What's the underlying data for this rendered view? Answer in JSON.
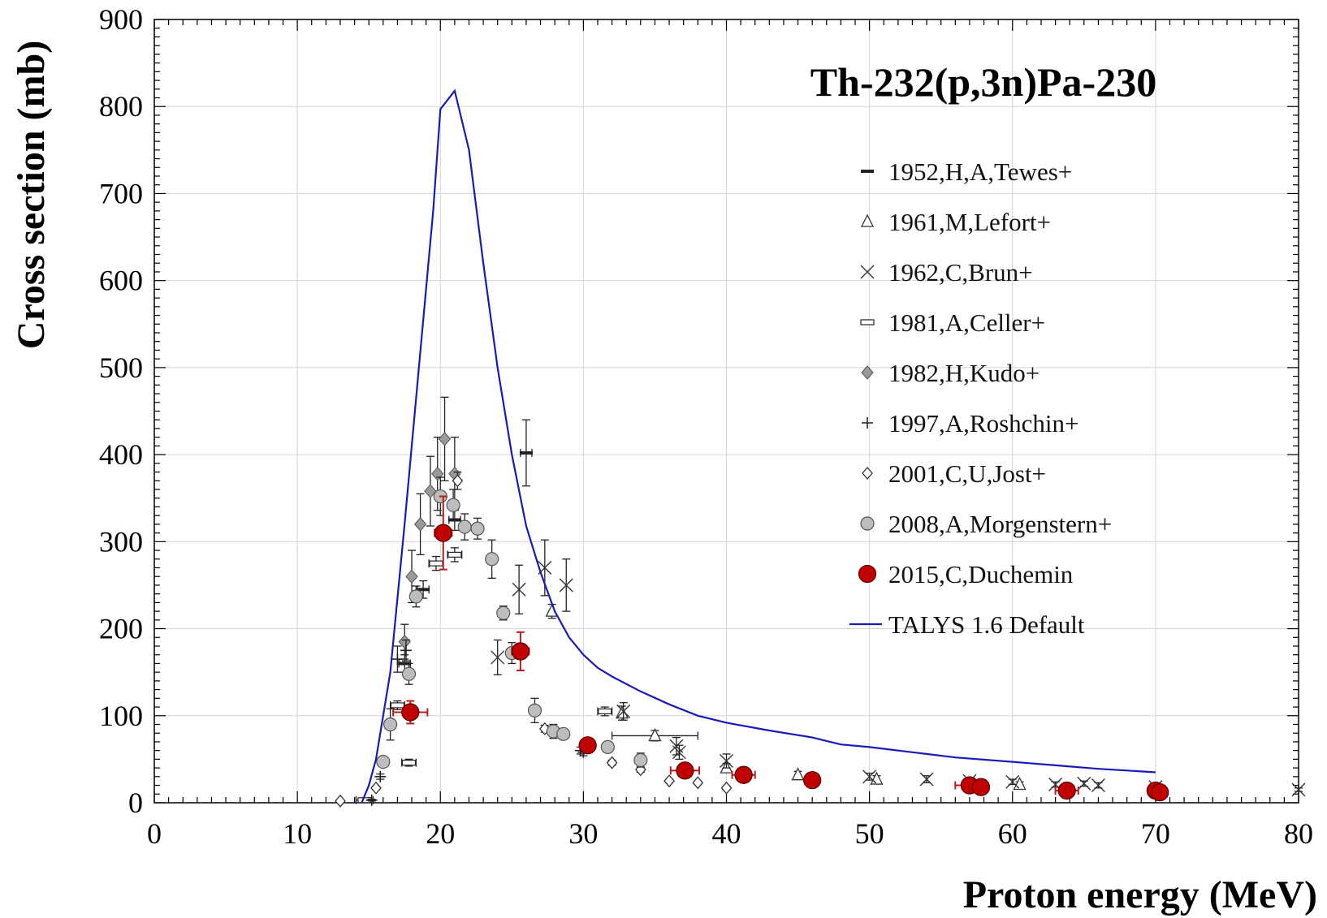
{
  "chart_data": {
    "type": "scatter",
    "title": "Th-232(p,3n)Pa-230",
    "xlabel": "Proton energy (MeV)",
    "ylabel": "Cross section (mb)",
    "xlim": [
      0,
      80
    ],
    "ylim": [
      0,
      900
    ],
    "xticks": [
      0,
      10,
      20,
      30,
      40,
      50,
      60,
      70,
      80
    ],
    "yticks": [
      0,
      100,
      200,
      300,
      400,
      500,
      600,
      700,
      800,
      900
    ],
    "grid": true,
    "legend_position": "right",
    "series": [
      {
        "name": "1952,H,A,Tewes+",
        "marker": "dash",
        "color": "#000000",
        "points": [
          {
            "x": 17.5,
            "y": 160,
            "ey": 10,
            "ex": 0.4
          },
          {
            "x": 18.8,
            "y": 245,
            "ey": 10,
            "ex": 0.4
          },
          {
            "x": 21.0,
            "y": 325,
            "ey": 12,
            "ex": 0.4
          },
          {
            "x": 26.0,
            "y": 402,
            "ey": 38,
            "ex": 0.4
          }
        ]
      },
      {
        "name": "1961,M,Lefort+",
        "marker": "triangle",
        "color": "#000000",
        "points": [
          {
            "x": 27.8,
            "y": 220,
            "ey": 8
          },
          {
            "x": 32.7,
            "y": 103,
            "ey": 8
          },
          {
            "x": 35.0,
            "y": 77,
            "ey": 6,
            "ex": 3
          },
          {
            "x": 40.0,
            "y": 40,
            "ey": 5,
            "ex": 0
          },
          {
            "x": 45.0,
            "y": 32,
            "ey": 4
          },
          {
            "x": 50.5,
            "y": 27,
            "ey": 4
          },
          {
            "x": 60.5,
            "y": 21,
            "ey": 3
          },
          {
            "x": 70.0,
            "y": 14,
            "ey": 3
          }
        ]
      },
      {
        "name": "1962,C,Brun+",
        "marker": "x",
        "color": "#000000",
        "points": [
          {
            "x": 24.0,
            "y": 167,
            "ey": 20
          },
          {
            "x": 25.5,
            "y": 245,
            "ey": 28
          },
          {
            "x": 27.3,
            "y": 270,
            "ey": 32
          },
          {
            "x": 28.8,
            "y": 250,
            "ey": 30
          },
          {
            "x": 32.8,
            "y": 105,
            "ey": 10
          },
          {
            "x": 36.5,
            "y": 65,
            "ey": 10
          },
          {
            "x": 36.7,
            "y": 58,
            "ey": 8
          },
          {
            "x": 40.0,
            "y": 48,
            "ey": 8
          },
          {
            "x": 50.0,
            "y": 30,
            "ey": 4
          },
          {
            "x": 54.0,
            "y": 27,
            "ey": 4
          },
          {
            "x": 57.0,
            "y": 25,
            "ey": 3
          },
          {
            "x": 60.0,
            "y": 24,
            "ey": 3
          },
          {
            "x": 63.0,
            "y": 21,
            "ey": 3
          },
          {
            "x": 65.0,
            "y": 22,
            "ey": 3
          },
          {
            "x": 66.0,
            "y": 20,
            "ey": 3
          },
          {
            "x": 70.0,
            "y": 18,
            "ey": 3
          },
          {
            "x": 80.0,
            "y": 15,
            "ey": 2
          }
        ]
      },
      {
        "name": "1981,A,Celler+",
        "marker": "hbar",
        "color": "#000000",
        "points": [
          {
            "x": 14.7,
            "y": 3,
            "ey": 1,
            "ex": 0.6
          },
          {
            "x": 17.0,
            "y": 112,
            "ey": 5,
            "ex": 0.5
          },
          {
            "x": 17.8,
            "y": 46,
            "ey": 4,
            "ex": 0.5
          },
          {
            "x": 19.7,
            "y": 275,
            "ey": 8,
            "ex": 0.5
          },
          {
            "x": 21.0,
            "y": 285,
            "ey": 8,
            "ex": 0.5
          },
          {
            "x": 31.5,
            "y": 105,
            "ey": 5,
            "ex": 0.5
          }
        ]
      },
      {
        "name": "1982,H,Kudo+",
        "marker": "diamond",
        "color": "#9a9a9a",
        "points": [
          {
            "x": 17.5,
            "y": 185,
            "ey": 20
          },
          {
            "x": 18.0,
            "y": 260,
            "ey": 30
          },
          {
            "x": 18.6,
            "y": 320,
            "ey": 35
          },
          {
            "x": 19.3,
            "y": 358,
            "ey": 40
          },
          {
            "x": 19.8,
            "y": 378,
            "ey": 42
          },
          {
            "x": 20.3,
            "y": 418,
            "ey": 48
          },
          {
            "x": 21.0,
            "y": 378,
            "ey": 42
          }
        ]
      },
      {
        "name": "1997,A,Roshchin+",
        "marker": "plus",
        "color": "#000000",
        "points": [
          {
            "x": 15.2,
            "y": 3,
            "ey": 1
          },
          {
            "x": 15.8,
            "y": 30,
            "ey": 3
          },
          {
            "x": 17.0,
            "y": 165,
            "ey": 15
          },
          {
            "x": 17.6,
            "y": 175,
            "ey": 12
          },
          {
            "x": 29.8,
            "y": 60,
            "ey": 4
          },
          {
            "x": 30.0,
            "y": 58,
            "ey": 4
          }
        ]
      },
      {
        "name": "2001,C,U,Jost+",
        "marker": "odiamond",
        "color": "#000000",
        "points": [
          {
            "x": 13.0,
            "y": 2,
            "ey": 1
          },
          {
            "x": 15.5,
            "y": 17,
            "ey": 2
          },
          {
            "x": 21.2,
            "y": 370,
            "ey": 10
          },
          {
            "x": 27.3,
            "y": 85,
            "ey": 4
          },
          {
            "x": 32.0,
            "y": 46,
            "ey": 3
          },
          {
            "x": 34.0,
            "y": 38,
            "ey": 3
          },
          {
            "x": 36.0,
            "y": 25,
            "ey": 2
          },
          {
            "x": 38.0,
            "y": 23,
            "ey": 2
          },
          {
            "x": 40.0,
            "y": 17,
            "ey": 2
          }
        ]
      },
      {
        "name": "2008,A,Morgenstern+",
        "marker": "circle",
        "color": "#bdbdbd",
        "points": [
          {
            "x": 16.0,
            "y": 47,
            "ey": 4
          },
          {
            "x": 16.5,
            "y": 90,
            "ey": 18
          },
          {
            "x": 17.8,
            "y": 148,
            "ey": 12
          },
          {
            "x": 18.3,
            "y": 237,
            "ey": 12
          },
          {
            "x": 20.0,
            "y": 352,
            "ey": 22
          },
          {
            "x": 20.9,
            "y": 342,
            "ey": 18
          },
          {
            "x": 21.7,
            "y": 317,
            "ey": 15
          },
          {
            "x": 22.6,
            "y": 315,
            "ey": 12
          },
          {
            "x": 23.6,
            "y": 280,
            "ey": 22
          },
          {
            "x": 24.4,
            "y": 218,
            "ey": 8
          },
          {
            "x": 25.0,
            "y": 172,
            "ey": 12
          },
          {
            "x": 26.6,
            "y": 106,
            "ey": 14
          },
          {
            "x": 27.9,
            "y": 82,
            "ey": 8
          },
          {
            "x": 28.6,
            "y": 79,
            "ey": 6
          },
          {
            "x": 31.7,
            "y": 64,
            "ey": 5
          },
          {
            "x": 34.0,
            "y": 49,
            "ey": 8
          }
        ]
      },
      {
        "name": "2015,C,Duchemin",
        "marker": "bigcircle",
        "color": "#c00000",
        "points": [
          {
            "x": 17.9,
            "y": 104,
            "ey": 13,
            "ex": 1.2
          },
          {
            "x": 20.2,
            "y": 310,
            "ey": 42,
            "ex": 0.6
          },
          {
            "x": 25.6,
            "y": 174,
            "ey": 22,
            "ex": 0.6
          },
          {
            "x": 30.3,
            "y": 66,
            "ey": 5,
            "ex": 0.3
          },
          {
            "x": 37.1,
            "y": 37,
            "ey": 4,
            "ex": 1.0
          },
          {
            "x": 41.2,
            "y": 32,
            "ey": 4,
            "ex": 0.8
          },
          {
            "x": 46.0,
            "y": 26,
            "ey": 3,
            "ex": 0.5
          },
          {
            "x": 57.0,
            "y": 20,
            "ey": 3,
            "ex": 1.0
          },
          {
            "x": 57.8,
            "y": 18,
            "ey": 3,
            "ex": 0.5
          },
          {
            "x": 63.8,
            "y": 14,
            "ey": 3,
            "ex": 0.8
          },
          {
            "x": 70.0,
            "y": 14,
            "ey": 3,
            "ex": 0.5
          },
          {
            "x": 70.3,
            "y": 12,
            "ey": 2,
            "ex": 0.3
          }
        ]
      },
      {
        "name": "TALYS 1.6 Default",
        "marker": "line",
        "color": "#1a1ab8",
        "points": [
          {
            "x": 14.5,
            "y": 0
          },
          {
            "x": 15.0,
            "y": 20
          },
          {
            "x": 15.5,
            "y": 50
          },
          {
            "x": 16.5,
            "y": 150
          },
          {
            "x": 17.5,
            "y": 320
          },
          {
            "x": 18.5,
            "y": 500
          },
          {
            "x": 19.5,
            "y": 680
          },
          {
            "x": 20.0,
            "y": 797
          },
          {
            "x": 21.0,
            "y": 818
          },
          {
            "x": 22.0,
            "y": 750
          },
          {
            "x": 23.0,
            "y": 620
          },
          {
            "x": 24.0,
            "y": 500
          },
          {
            "x": 25.0,
            "y": 400
          },
          {
            "x": 26.0,
            "y": 318
          },
          {
            "x": 27.0,
            "y": 265
          },
          {
            "x": 28.0,
            "y": 220
          },
          {
            "x": 29.0,
            "y": 190
          },
          {
            "x": 30.0,
            "y": 170
          },
          {
            "x": 31.0,
            "y": 155
          },
          {
            "x": 32.0,
            "y": 145
          },
          {
            "x": 34.0,
            "y": 128
          },
          {
            "x": 36.0,
            "y": 113
          },
          {
            "x": 38.0,
            "y": 100
          },
          {
            "x": 40.0,
            "y": 92
          },
          {
            "x": 43.0,
            "y": 83
          },
          {
            "x": 46.0,
            "y": 75
          },
          {
            "x": 48.0,
            "y": 67
          },
          {
            "x": 50.0,
            "y": 64
          },
          {
            "x": 53.0,
            "y": 58
          },
          {
            "x": 56.0,
            "y": 52
          },
          {
            "x": 60.0,
            "y": 47
          },
          {
            "x": 63.0,
            "y": 43
          },
          {
            "x": 66.0,
            "y": 39
          },
          {
            "x": 68.0,
            "y": 37
          },
          {
            "x": 70.0,
            "y": 35
          }
        ]
      }
    ]
  }
}
